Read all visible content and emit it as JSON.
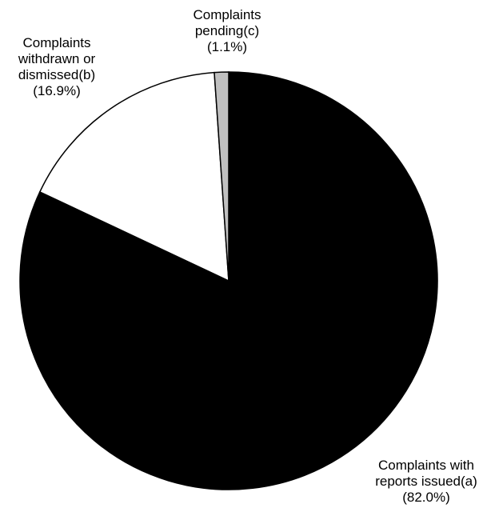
{
  "chart_data": {
    "type": "pie",
    "start": "top",
    "direction": "clockwise",
    "slices": [
      {
        "label_lines": [
          "Complaints with",
          "reports issued(a)",
          "(82.0%)"
        ],
        "value": 82.0,
        "color": "#000000"
      },
      {
        "label_lines": [
          "Complaints",
          "withdrawn or",
          "dismissed(b)",
          "(16.9%)"
        ],
        "value": 16.9,
        "color": "#ffffff"
      },
      {
        "label_lines": [
          "Complaints",
          "pending(c)",
          "(1.1%)"
        ],
        "value": 1.1,
        "color": "#c0c0c0"
      }
    ]
  }
}
